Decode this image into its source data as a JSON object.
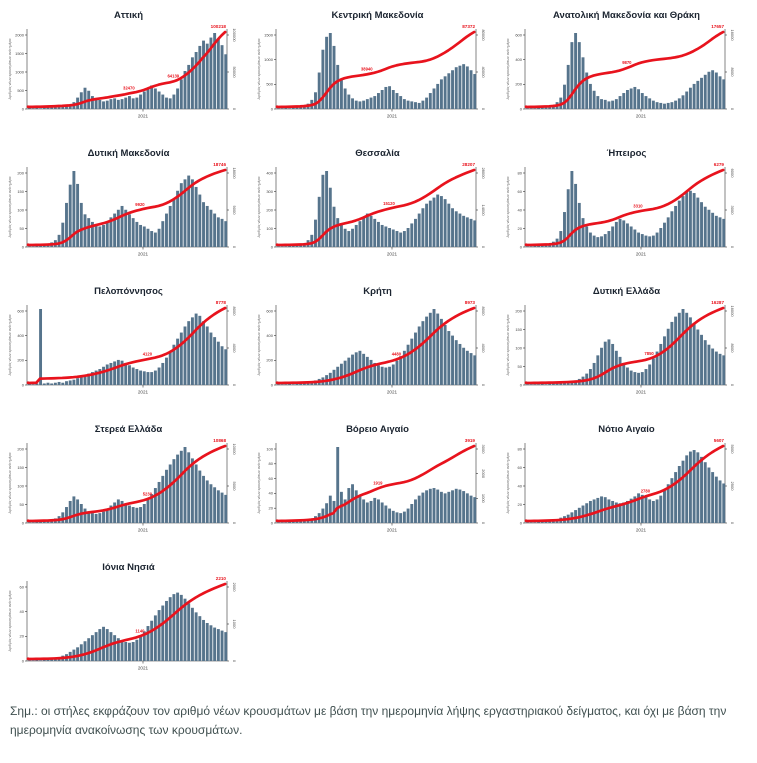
{
  "note": "Σημ.: οι στήλες εκφράζουν τον αριθμό νέων κρουσμάτων με βάση την ημερομηνία λήψης εργαστηριακού δείγματος, και όχι με βάση την ημερομηνία ανακοίνωσης των κρουσμάτων.",
  "colors": {
    "bar": "#56748c",
    "line": "#e8131d",
    "axis": "#333333",
    "tick_text": "#444444",
    "title_text": "#1b2430",
    "note_text": "#3f4f4f"
  },
  "y_axis_title": "Αριθμός νέων κρουσμάτων ανά ημέρα",
  "x_tick_label": "2021",
  "chart_data": [
    {
      "type": "bar",
      "title": "Αττική",
      "total_label": "100218",
      "x_tick": "2021",
      "left_ticks": [
        "0",
        "500",
        "1000",
        "1500",
        "2000"
      ],
      "right_ticks": [
        "0",
        "50000",
        "100000"
      ],
      "mids": [
        {
          "x": 0.5,
          "label": "32470"
        },
        {
          "x": 0.73,
          "label": "64139"
        }
      ],
      "bars": [
        2,
        1,
        2,
        1,
        2,
        3,
        2,
        3,
        4,
        3,
        5,
        6,
        9,
        15,
        22,
        28,
        24,
        17,
        13,
        12,
        10,
        11,
        13,
        14,
        12,
        13,
        15,
        17,
        14,
        15,
        19,
        23,
        27,
        31,
        27,
        23,
        19,
        15,
        14,
        19,
        27,
        39,
        50,
        58,
        68,
        75,
        83,
        90,
        86,
        94,
        100,
        92,
        84,
        72
      ]
    },
    {
      "type": "bar",
      "title": "Κεντρική Μακεδονία",
      "total_label": "87372",
      "x_tick": "2021",
      "left_ticks": [
        "0",
        "500",
        "1000",
        "1500"
      ],
      "right_ticks": [
        "0",
        "40000",
        "80000"
      ],
      "mids": [
        {
          "x": 0.45,
          "label": "38940"
        }
      ],
      "bars": [
        1,
        1,
        2,
        1,
        2,
        3,
        3,
        5,
        7,
        12,
        22,
        48,
        78,
        95,
        100,
        83,
        58,
        38,
        27,
        19,
        14,
        11,
        10,
        11,
        13,
        15,
        17,
        21,
        25,
        29,
        30,
        25,
        21,
        17,
        13,
        11,
        10,
        9,
        8,
        11,
        15,
        21,
        27,
        33,
        39,
        43,
        47,
        51,
        55,
        57,
        59,
        56,
        51,
        46
      ]
    },
    {
      "type": "bar",
      "title": "Ανατολική Μακεδονία και Θράκη",
      "total_label": "17657",
      "x_tick": "2021",
      "left_ticks": [
        "0",
        "200",
        "400",
        "600"
      ],
      "right_ticks": [
        "0",
        "8000",
        "16000"
      ],
      "mids": [
        {
          "x": 0.5,
          "label": "9870"
        }
      ],
      "bars": [
        1,
        1,
        1,
        2,
        2,
        3,
        3,
        5,
        9,
        15,
        32,
        58,
        88,
        100,
        88,
        68,
        48,
        33,
        24,
        17,
        13,
        12,
        10,
        11,
        13,
        17,
        21,
        25,
        27,
        29,
        26,
        21,
        17,
        14,
        11,
        9,
        8,
        7,
        8,
        9,
        11,
        14,
        18,
        23,
        28,
        33,
        37,
        41,
        45,
        49,
        51,
        48,
        43,
        39
      ]
    },
    {
      "type": "bar",
      "title": "Δυτική Μακεδονία",
      "total_label": "18746",
      "x_tick": "2021",
      "left_ticks": [
        "0",
        "50",
        "100",
        "150",
        "200"
      ],
      "right_ticks": [
        "0",
        "9000",
        "18000"
      ],
      "mids": [
        {
          "x": 0.55,
          "label": "9920"
        }
      ],
      "bars": [
        1,
        1,
        2,
        2,
        3,
        4,
        6,
        9,
        16,
        32,
        58,
        82,
        100,
        83,
        58,
        43,
        38,
        33,
        29,
        27,
        29,
        34,
        39,
        44,
        49,
        54,
        49,
        43,
        38,
        33,
        29,
        27,
        24,
        21,
        19,
        24,
        34,
        44,
        54,
        64,
        74,
        84,
        89,
        94,
        89,
        79,
        69,
        59,
        54,
        49,
        44,
        39,
        37,
        34
      ]
    },
    {
      "type": "bar",
      "title": "Θεσσαλία",
      "total_label": "28207",
      "x_tick": "2021",
      "left_ticks": [
        "0",
        "100",
        "200",
        "300",
        "400"
      ],
      "right_ticks": [
        "0",
        "14000",
        "28000"
      ],
      "mids": [
        {
          "x": 0.55,
          "label": "15120"
        }
      ],
      "bars": [
        1,
        1,
        1,
        2,
        2,
        3,
        3,
        5,
        9,
        16,
        36,
        66,
        95,
        100,
        78,
        53,
        38,
        29,
        24,
        21,
        24,
        29,
        34,
        39,
        44,
        41,
        37,
        33,
        29,
        27,
        25,
        23,
        21,
        19,
        21,
        25,
        31,
        37,
        44,
        51,
        57,
        61,
        65,
        69,
        67,
        63,
        57,
        51,
        47,
        44,
        41,
        39,
        37,
        35
      ]
    },
    {
      "type": "bar",
      "title": "Ήπειρος",
      "total_label": "6279",
      "x_tick": "2021",
      "left_ticks": [
        "0",
        "20",
        "40",
        "60",
        "80"
      ],
      "right_ticks": [
        "0",
        "3000",
        "6000"
      ],
      "mids": [
        {
          "x": 0.55,
          "label": "3310"
        }
      ],
      "bars": [
        1,
        1,
        2,
        2,
        3,
        3,
        4,
        7,
        11,
        21,
        46,
        76,
        100,
        83,
        58,
        38,
        27,
        19,
        15,
        13,
        14,
        17,
        21,
        27,
        33,
        37,
        35,
        31,
        27,
        23,
        19,
        17,
        15,
        14,
        15,
        19,
        25,
        32,
        39,
        47,
        54,
        61,
        67,
        72,
        74,
        71,
        65,
        59,
        53,
        49,
        45,
        41,
        39,
        37
      ]
    },
    {
      "type": "bar",
      "title": "Πελοπόννησος",
      "total_label": "8778",
      "x_tick": "2021",
      "left_ticks": [
        "0",
        "200",
        "400",
        "600"
      ],
      "right_ticks": [
        "0",
        "4000",
        "8000"
      ],
      "mids": [
        {
          "x": 0.6,
          "label": "4120"
        }
      ],
      "bars": [
        2,
        1,
        2,
        100,
        2,
        3,
        2,
        3,
        4,
        3,
        5,
        6,
        7,
        9,
        11,
        13,
        15,
        17,
        19,
        21,
        24,
        27,
        29,
        31,
        33,
        32,
        29,
        26,
        23,
        21,
        19,
        18,
        17,
        17,
        19,
        23,
        29,
        36,
        44,
        53,
        61,
        69,
        77,
        84,
        89,
        94,
        91,
        84,
        77,
        69,
        63,
        57,
        51,
        47
      ]
    },
    {
      "type": "bar",
      "title": "Κρήτη",
      "total_label": "8973",
      "x_tick": "2021",
      "left_ticks": [
        "0",
        "200",
        "400",
        "600"
      ],
      "right_ticks": [
        "0",
        "4000",
        "8000"
      ],
      "mids": [
        {
          "x": 0.6,
          "label": "4480"
        }
      ],
      "bars": [
        1,
        1,
        1,
        2,
        1,
        2,
        2,
        3,
        4,
        5,
        6,
        8,
        10,
        13,
        16,
        20,
        24,
        28,
        32,
        36,
        40,
        43,
        45,
        41,
        37,
        33,
        29,
        26,
        24,
        23,
        24,
        27,
        32,
        38,
        45,
        53,
        61,
        69,
        77,
        84,
        90,
        95,
        100,
        94,
        87,
        79,
        71,
        65,
        59,
        54,
        49,
        45,
        42,
        39
      ]
    },
    {
      "type": "bar",
      "title": "Δυτική Ελλάδα",
      "total_label": "16287",
      "x_tick": "2021",
      "left_ticks": [
        "0",
        "50",
        "100",
        "150",
        "200"
      ],
      "right_ticks": [
        "0",
        "8000",
        "16000"
      ],
      "mids": [
        {
          "x": 0.62,
          "label": "7850"
        }
      ],
      "bars": [
        1,
        1,
        1,
        1,
        2,
        1,
        2,
        2,
        3,
        3,
        4,
        4,
        5,
        6,
        8,
        11,
        15,
        21,
        29,
        39,
        49,
        57,
        60,
        54,
        45,
        37,
        29,
        23,
        19,
        17,
        16,
        17,
        21,
        27,
        35,
        44,
        54,
        64,
        74,
        83,
        90,
        95,
        100,
        95,
        89,
        81,
        73,
        66,
        59,
        53,
        48,
        44,
        41,
        39
      ]
    },
    {
      "type": "bar",
      "title": "Στερεά Ελλάδα",
      "total_label": "10868",
      "x_tick": "2021",
      "left_ticks": [
        "0",
        "50",
        "100",
        "150",
        "200"
      ],
      "right_ticks": [
        "0",
        "5000",
        "10000"
      ],
      "mids": [
        {
          "x": 0.6,
          "label": "5230"
        }
      ],
      "bars": [
        1,
        1,
        2,
        2,
        3,
        3,
        4,
        6,
        9,
        14,
        21,
        29,
        35,
        31,
        25,
        19,
        15,
        13,
        12,
        13,
        15,
        19,
        23,
        27,
        31,
        29,
        26,
        23,
        21,
        20,
        21,
        25,
        31,
        38,
        46,
        54,
        62,
        70,
        77,
        84,
        90,
        95,
        100,
        93,
        85,
        77,
        69,
        62,
        56,
        51,
        47,
        43,
        40,
        37
      ]
    },
    {
      "type": "bar",
      "title": "Βόρειο Αιγαίο",
      "total_label": "3919",
      "x_tick": "2021",
      "left_ticks": [
        "0",
        "20",
        "40",
        "60",
        "80",
        "100"
      ],
      "right_ticks": [
        "0",
        "1000",
        "2000",
        "3000"
      ],
      "mids": [
        {
          "x": 0.5,
          "label": "1919"
        }
      ],
      "bars": [
        1,
        1,
        1,
        2,
        2,
        3,
        3,
        4,
        5,
        6,
        9,
        13,
        19,
        26,
        36,
        29,
        100,
        41,
        31,
        46,
        51,
        43,
        36,
        31,
        27,
        29,
        33,
        31,
        27,
        23,
        19,
        16,
        14,
        13,
        15,
        19,
        25,
        31,
        36,
        40,
        43,
        45,
        46,
        44,
        41,
        39,
        41,
        43,
        45,
        44,
        42,
        39,
        36,
        34
      ]
    },
    {
      "type": "bar",
      "title": "Νότιο Αιγαίο",
      "total_label": "5607",
      "x_tick": "2021",
      "left_ticks": [
        "0",
        "20",
        "40",
        "60",
        "80"
      ],
      "right_ticks": [
        "0",
        "2500",
        "5000"
      ],
      "mids": [
        {
          "x": 0.6,
          "label": "2780"
        }
      ],
      "bars": [
        1,
        1,
        1,
        2,
        2,
        3,
        3,
        4,
        5,
        7,
        9,
        11,
        14,
        17,
        20,
        23,
        26,
        29,
        31,
        33,
        35,
        34,
        31,
        29,
        27,
        26,
        27,
        29,
        32,
        35,
        39,
        37,
        34,
        31,
        29,
        31,
        36,
        43,
        51,
        59,
        67,
        75,
        82,
        89,
        94,
        96,
        93,
        87,
        80,
        73,
        67,
        61,
        56,
        52
      ]
    },
    {
      "type": "bar",
      "title": "Ιόνια Νησιά",
      "total_label": "2210",
      "x_tick": "2021",
      "left_ticks": [
        "0",
        "20",
        "40",
        "60"
      ],
      "right_ticks": [
        "0",
        "1000",
        "2000"
      ],
      "mids": [
        {
          "x": 0.55,
          "label": "1140"
        }
      ],
      "bars": [
        1,
        1,
        2,
        1,
        2,
        2,
        3,
        4,
        5,
        7,
        9,
        12,
        15,
        18,
        22,
        26,
        30,
        34,
        38,
        42,
        45,
        42,
        38,
        34,
        30,
        27,
        25,
        24,
        25,
        28,
        33,
        39,
        46,
        53,
        60,
        67,
        73,
        79,
        84,
        88,
        90,
        87,
        82,
        76,
        70,
        64,
        59,
        54,
        50,
        47,
        44,
        42,
        40,
        38
      ]
    }
  ]
}
